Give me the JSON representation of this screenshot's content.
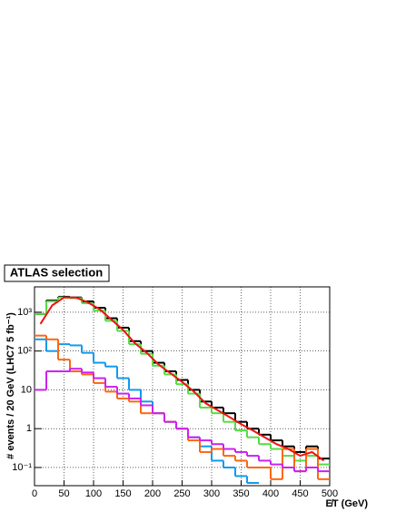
{
  "chart_data": {
    "type": "histogram",
    "title": "ATLAS selection",
    "xlabel": "E̸T (GeV)",
    "ylabel": "# events / 20 GeV  (LHC7 5 fb⁻¹)",
    "bins": [
      0,
      20,
      40,
      60,
      80,
      100,
      120,
      140,
      160,
      180,
      200,
      220,
      240,
      260,
      280,
      300,
      320,
      340,
      360,
      380,
      400,
      420,
      440,
      460,
      480,
      500
    ],
    "xlim": [
      0,
      500
    ],
    "xticks": [
      0,
      50,
      100,
      150,
      200,
      250,
      300,
      350,
      400,
      450,
      500
    ],
    "ylim": [
      0.034,
      4500
    ],
    "log_y": true,
    "grid": true,
    "yticks": [
      {
        "value": 0.1,
        "label": "10⁻¹"
      },
      1,
      10,
      {
        "value": 100,
        "label": "10²"
      },
      {
        "value": 1000,
        "label": "10³"
      }
    ],
    "series": [
      {
        "color": "#000000",
        "values": [
          900,
          2000,
          2500,
          2400,
          1900,
          1300,
          700,
          400,
          180,
          100,
          50,
          30,
          18,
          10,
          5,
          3.5,
          2.5,
          1.5,
          1,
          0.7,
          0.5,
          0.35,
          0.25,
          0.35,
          0.17
        ]
      },
      {
        "color": "#55dd44",
        "values": [
          900,
          1900,
          2400,
          2300,
          1700,
          1100,
          600,
          330,
          150,
          85,
          42,
          25,
          14,
          8,
          3.5,
          2.5,
          1.5,
          0.9,
          0.6,
          0.4,
          0.3,
          0.2,
          0.15,
          0.2,
          0.12
        ]
      },
      {
        "color": "#1199ee",
        "values": [
          200,
          100,
          150,
          140,
          90,
          50,
          40,
          20,
          10,
          5,
          2.5,
          1.5,
          1,
          0.6,
          0.35,
          0.15,
          0.1,
          0.06,
          0.04,
          null,
          null,
          null,
          null,
          null,
          null
        ]
      },
      {
        "color": "#ff6611",
        "values": [
          250,
          200,
          60,
          30,
          25,
          15,
          9,
          6,
          5,
          2.5,
          2.5,
          1.5,
          1,
          0.5,
          0.25,
          0.3,
          0.2,
          0.15,
          0.1,
          0.1,
          0.05,
          0.3,
          0.08,
          0.3,
          0.05
        ]
      },
      {
        "color": "#cc22ee",
        "values": [
          10,
          30,
          30,
          35,
          28,
          20,
          12,
          8,
          6,
          4,
          2.5,
          1.5,
          1,
          0.6,
          0.5,
          0.4,
          0.3,
          0.25,
          0.2,
          0.15,
          0.12,
          0.1,
          0.08,
          0.1,
          0.08
        ]
      },
      {
        "color": "#ee1111",
        "style": "line",
        "values": [
          500,
          1500,
          2400,
          2400,
          1800,
          1200,
          650,
          350,
          160,
          90,
          45,
          27,
          16,
          9,
          4.5,
          3,
          2,
          1.3,
          0.9,
          0.6,
          0.4,
          0.3,
          0.2,
          0.25,
          0.15
        ]
      }
    ]
  }
}
